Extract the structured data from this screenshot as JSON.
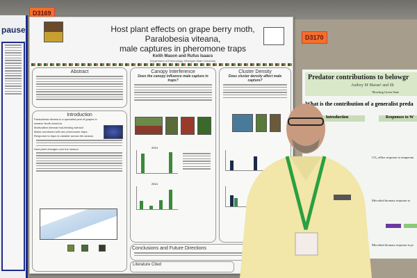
{
  "left_poster": {
    "title_fragment": "pause"
  },
  "main_poster": {
    "board_number": "D3169",
    "title_line1": "Host plant effects on grape berry moth, Paralobesia viteana,",
    "title_line2": "male captures in pheromone traps",
    "authors": "Keith Mason and Rufus Isaacs",
    "department": "Department of Entomology, Michigan State University",
    "sections": {
      "abstract": "Abstract",
      "canopy": "Canopy Interference",
      "canopy_question": "Does the canopy influence male capture in traps?",
      "cluster": "Cluster Density",
      "cluster_question": "Does cluster density affect male capture?",
      "introduction": "Introduction",
      "conclusions": "Conclusions and Future Directions",
      "literature": "Literature Cited"
    },
    "intro_bullets": [
      "Paralobesia viteana is a specialist pest of grapes in eastern North America",
      "Multivoltine internal fruit-feeding tortricid",
      "Males monitored with sex pheromone traps",
      "Response to traps is variable across the season",
      "Host plant changes over the season"
    ],
    "chart_years": [
      "2013",
      "2014"
    ],
    "accent_color": "#3a8a3a"
  },
  "right_poster": {
    "board_number": "D3170",
    "title": "Predator contributions to belowgr",
    "authors": "Audrey M Maran¹ and Sh",
    "affiliation": "¹Bowling Green State",
    "question": "What is the contribution of a generalist preda",
    "section_intro": "Introduction",
    "section_responses": "Responses to W",
    "caption1": "CO₂ efflux response to temperatu",
    "caption2": "Microbial biomass response to",
    "caption3": "Microbial biomass response to pr"
  }
}
